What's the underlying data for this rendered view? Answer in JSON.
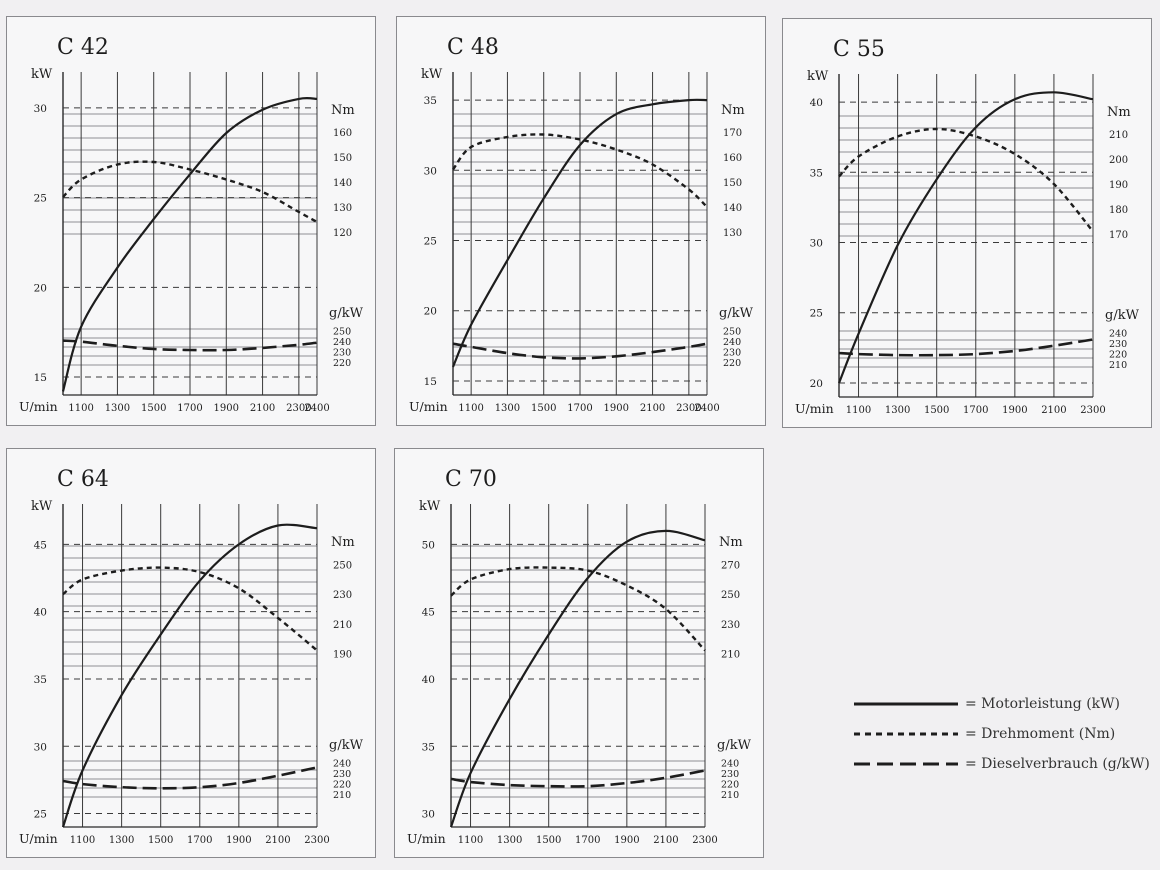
{
  "colors": {
    "background": "#f1f0f2",
    "panel": "#f7f7f8",
    "border": "#8a8a8e",
    "ink": "#1d1d1d",
    "grid": "#8f8f93"
  },
  "legend": [
    {
      "style": "solid",
      "label": "= Motorleistung (kW)"
    },
    {
      "style": "dotted",
      "label": "= Drehmoment (Nm)"
    },
    {
      "style": "dashed",
      "label": "= Dieselverbrauch (g/kW)"
    }
  ],
  "chart_data": [
    {
      "type": "line",
      "title": "C 42",
      "xlabel": "U/min",
      "ylabel_left": "kW",
      "ylabel_torque": "Nm",
      "ylabel_fuel": "g/kW",
      "xlim": [
        1000,
        2400
      ],
      "xticks": [
        1100,
        1300,
        1500,
        1700,
        1900,
        2100,
        2300,
        2400
      ],
      "ylim_kw": [
        14,
        32
      ],
      "kw_ticks": [
        15,
        20,
        25,
        30
      ],
      "nm_ticks": [
        120,
        130,
        140,
        150,
        160
      ],
      "nm_range": [
        116,
        168
      ],
      "fuel_ticks": [
        220,
        230,
        240,
        250
      ],
      "fuel_range": [
        210,
        254
      ],
      "series": [
        {
          "name": "Motorleistung (kW)",
          "unit": "kW",
          "x": [
            1000,
            1100,
            1300,
            1500,
            1700,
            1900,
            2100,
            2300,
            2400
          ],
          "values": [
            14.2,
            17.8,
            21.1,
            23.8,
            26.3,
            28.6,
            29.9,
            30.5,
            30.5
          ]
        },
        {
          "name": "Drehmoment (Nm)",
          "unit": "Nm",
          "x": [
            1000,
            1100,
            1300,
            1500,
            1700,
            1900,
            2100,
            2300,
            2400
          ],
          "values": [
            134,
            141,
            147,
            148,
            145,
            141,
            136,
            128,
            124
          ]
        },
        {
          "name": "Dieselverbrauch (g/kW)",
          "unit": "g/kW",
          "x": [
            1000,
            1100,
            1300,
            1500,
            1700,
            1900,
            2100,
            2300,
            2400
          ],
          "values": [
            241,
            240,
            236,
            233,
            232,
            232,
            234,
            237,
            239
          ]
        }
      ]
    },
    {
      "type": "line",
      "title": "C 48",
      "xlabel": "U/min",
      "ylabel_left": "kW",
      "ylabel_torque": "Nm",
      "ylabel_fuel": "g/kW",
      "xlim": [
        1000,
        2400
      ],
      "xticks": [
        1100,
        1300,
        1500,
        1700,
        1900,
        2100,
        2300,
        2400
      ],
      "ylim_kw": [
        14,
        37
      ],
      "kw_ticks": [
        15,
        20,
        25,
        30,
        35
      ],
      "nm_ticks": [
        130,
        140,
        150,
        160,
        170
      ],
      "nm_range": [
        126,
        178
      ],
      "fuel_ticks": [
        220,
        230,
        240,
        250
      ],
      "fuel_range": [
        210,
        254
      ],
      "series": [
        {
          "name": "Motorleistung (kW)",
          "unit": "kW",
          "x": [
            1000,
            1100,
            1300,
            1500,
            1700,
            1900,
            2100,
            2300,
            2400
          ],
          "values": [
            16.0,
            19.0,
            23.6,
            28.0,
            31.8,
            34.0,
            34.7,
            35.0,
            35.0
          ]
        },
        {
          "name": "Drehmoment (Nm)",
          "unit": "Nm",
          "x": [
            1000,
            1100,
            1300,
            1500,
            1700,
            1900,
            2100,
            2300,
            2400
          ],
          "values": [
            155,
            164,
            168,
            169,
            167,
            163,
            157,
            147,
            140
          ]
        },
        {
          "name": "Dieselverbrauch (g/kW)",
          "unit": "g/kW",
          "x": [
            1000,
            1100,
            1300,
            1500,
            1700,
            1900,
            2100,
            2300,
            2400
          ],
          "values": [
            238,
            235,
            229,
            225,
            224,
            226,
            230,
            235,
            238
          ]
        }
      ]
    },
    {
      "type": "line",
      "title": "C 55",
      "xlabel": "U/min",
      "ylabel_left": "kW",
      "ylabel_torque": "Nm",
      "ylabel_fuel": "g/kW",
      "xlim": [
        1000,
        2300
      ],
      "xticks": [
        1100,
        1300,
        1500,
        1700,
        1900,
        2100,
        2300
      ],
      "ylim_kw": [
        19,
        42
      ],
      "kw_ticks": [
        20,
        25,
        30,
        35,
        40
      ],
      "nm_ticks": [
        170,
        180,
        190,
        200,
        210
      ],
      "nm_range": [
        166,
        218
      ],
      "fuel_ticks": [
        210,
        220,
        230,
        240
      ],
      "fuel_range": [
        200,
        244
      ],
      "series": [
        {
          "name": "Motorleistung (kW)",
          "unit": "kW",
          "x": [
            1000,
            1100,
            1300,
            1500,
            1700,
            1900,
            2100,
            2300
          ],
          "values": [
            20.0,
            23.5,
            29.8,
            34.5,
            38.2,
            40.2,
            40.7,
            40.2
          ]
        },
        {
          "name": "Drehmoment (Nm)",
          "unit": "Nm",
          "x": [
            1000,
            1100,
            1300,
            1500,
            1700,
            1900,
            2100,
            2300
          ],
          "values": [
            193,
            201,
            209,
            212,
            209,
            202,
            190,
            171
          ]
        },
        {
          "name": "Dieselverbrauch (g/kW)",
          "unit": "g/kW",
          "x": [
            1000,
            1100,
            1300,
            1500,
            1700,
            1900,
            2100,
            2300
          ],
          "values": [
            221,
            220,
            219,
            219,
            220,
            223,
            228,
            234
          ]
        }
      ]
    },
    {
      "type": "line",
      "title": "C 64",
      "xlabel": "U/min",
      "ylabel_left": "kW",
      "ylabel_torque": "Nm",
      "ylabel_fuel": "g/kW",
      "xlim": [
        1000,
        2300
      ],
      "xticks": [
        1100,
        1300,
        1500,
        1700,
        1900,
        2100,
        2300
      ],
      "ylim_kw": [
        24,
        48
      ],
      "kw_ticks": [
        25,
        30,
        35,
        40,
        45
      ],
      "nm_ticks": [
        190,
        210,
        230,
        250
      ],
      "nm_range": [
        176,
        264
      ],
      "fuel_ticks": [
        210,
        220,
        230,
        240
      ],
      "fuel_range": [
        200,
        244
      ],
      "series": [
        {
          "name": "Motorleistung (kW)",
          "unit": "kW",
          "x": [
            1000,
            1100,
            1300,
            1500,
            1700,
            1900,
            2100,
            2300
          ],
          "values": [
            24.0,
            28.2,
            33.8,
            38.3,
            42.3,
            45.0,
            46.4,
            46.2
          ]
        },
        {
          "name": "Drehmoment (Nm)",
          "unit": "Nm",
          "x": [
            1000,
            1100,
            1300,
            1500,
            1700,
            1900,
            2100,
            2300
          ],
          "values": [
            230,
            240,
            246,
            248,
            245,
            234,
            214,
            192
          ]
        },
        {
          "name": "Dieselverbrauch (g/kW)",
          "unit": "g/kW",
          "x": [
            1000,
            1100,
            1300,
            1500,
            1700,
            1900,
            2100,
            2300
          ],
          "values": [
            223,
            220,
            217,
            216,
            217,
            221,
            228,
            236
          ]
        }
      ]
    },
    {
      "type": "line",
      "title": "C 70",
      "xlabel": "U/min",
      "ylabel_left": "kW",
      "ylabel_torque": "Nm",
      "ylabel_fuel": "g/kW",
      "xlim": [
        1000,
        2300
      ],
      "xticks": [
        1100,
        1300,
        1500,
        1700,
        1900,
        2100,
        2300
      ],
      "ylim_kw": [
        29,
        53
      ],
      "kw_ticks": [
        30,
        35,
        40,
        45,
        50
      ],
      "nm_ticks": [
        210,
        230,
        250,
        270
      ],
      "nm_range": [
        196,
        284
      ],
      "fuel_ticks": [
        210,
        220,
        230,
        240
      ],
      "fuel_range": [
        200,
        244
      ],
      "series": [
        {
          "name": "Motorleistung (kW)",
          "unit": "kW",
          "x": [
            1000,
            1100,
            1300,
            1500,
            1700,
            1900,
            2100,
            2300
          ],
          "values": [
            29.0,
            33.0,
            38.5,
            43.3,
            47.5,
            50.2,
            51.0,
            50.3
          ]
        },
        {
          "name": "Drehmoment (Nm)",
          "unit": "Nm",
          "x": [
            1000,
            1100,
            1300,
            1500,
            1700,
            1900,
            2100,
            2300
          ],
          "values": [
            249,
            260,
            267,
            268,
            266,
            256,
            240,
            212
          ]
        },
        {
          "name": "Dieselverbrauch (g/kW)",
          "unit": "g/kW",
          "x": [
            1000,
            1100,
            1300,
            1500,
            1700,
            1900,
            2100,
            2300
          ],
          "values": [
            225,
            222,
            219,
            218,
            218,
            221,
            226,
            233
          ]
        }
      ]
    }
  ]
}
